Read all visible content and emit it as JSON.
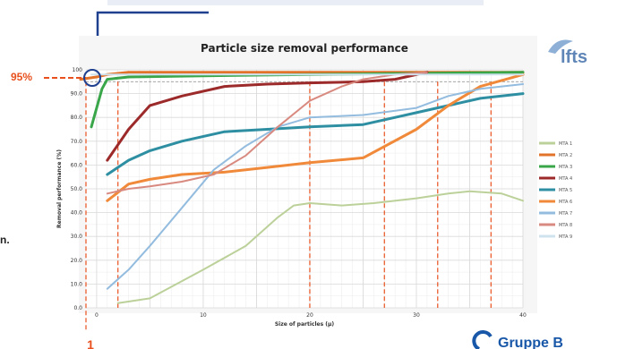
{
  "page": {
    "top_banner_text": "",
    "fragment_text": "n.",
    "threshold_label": "95%",
    "marker_label": "1",
    "logo_right": "lfts",
    "logo_bottom": "Gruppe B"
  },
  "colors": {
    "accent_red": "#e8501e",
    "dark_red": "#b52a22",
    "navy_top": "#1f3f8f",
    "logo_blue": "#5f86b7",
    "gruppe_blue": "#1957a8"
  },
  "chart_data": {
    "type": "line",
    "title": "Particle size removal performance",
    "xlabel": "Size of particles (µ)",
    "ylabel": "Removal performance (%)",
    "xlim": [
      -1,
      40
    ],
    "ylim": [
      0,
      100
    ],
    "x_ticks": [
      0,
      5,
      10,
      15,
      20,
      25,
      30,
      35,
      40
    ],
    "x_tick_labels": [
      "0",
      "",
      "10",
      "",
      "20",
      "",
      "30",
      "",
      "40"
    ],
    "y_ticks": [
      0,
      10,
      20,
      30,
      40,
      50,
      60,
      70,
      80,
      90,
      100
    ],
    "y_tick_labels": [
      "0.0",
      "10.0",
      "20.0",
      "30.0",
      "40.0",
      "50.0",
      "60.0",
      "70.0",
      "80.0",
      "90.0",
      "100"
    ],
    "threshold": 95,
    "marked_x": [
      -1,
      2,
      20,
      27,
      32,
      37
    ],
    "grid": true,
    "legend_position": "right",
    "series": [
      {
        "name": "MTA 1",
        "color": "#bcd19a",
        "x": [
          2,
          5,
          10,
          14,
          17,
          18.5,
          20,
          23,
          26,
          30,
          33,
          35,
          38,
          40
        ],
        "y": [
          2,
          4,
          16,
          26,
          38,
          43,
          44,
          43,
          44,
          46,
          48,
          49,
          48,
          45
        ]
      },
      {
        "name": "MTA 2",
        "color": "#e2732a",
        "x": [
          -1.5,
          0,
          1,
          3,
          10,
          20,
          30,
          40
        ],
        "y": [
          96,
          97,
          98,
          99,
          99,
          99,
          99,
          99
        ]
      },
      {
        "name": "MTA 3",
        "color": "#3aa64a",
        "x": [
          -0.5,
          0.5,
          1,
          3,
          10,
          20,
          30,
          40
        ],
        "y": [
          76,
          92,
          96,
          97,
          97.5,
          98,
          98.5,
          99
        ]
      },
      {
        "name": "MTA 4",
        "color": "#9c2a2a",
        "x": [
          1,
          3,
          5,
          8,
          12,
          16,
          20,
          25,
          28,
          31
        ],
        "y": [
          62,
          75,
          85,
          89,
          93,
          94,
          94.5,
          95,
          96,
          99
        ]
      },
      {
        "name": "MTA 5",
        "color": "#2f8fa2",
        "x": [
          1,
          3,
          5,
          8,
          12,
          16,
          20,
          25,
          30,
          33,
          36,
          40
        ],
        "y": [
          56,
          62,
          66,
          70,
          74,
          75,
          76,
          77,
          82,
          85,
          88,
          90
        ]
      },
      {
        "name": "MTA 6",
        "color": "#f08a3a",
        "x": [
          1,
          3,
          5,
          8,
          12,
          16,
          20,
          25,
          30,
          33,
          36,
          40
        ],
        "y": [
          45,
          52,
          54,
          56,
          57,
          59,
          61,
          63,
          75,
          85,
          93,
          98
        ]
      },
      {
        "name": "MTA 7",
        "color": "#93bcdf",
        "x": [
          1,
          3,
          5,
          8,
          11,
          14,
          17,
          20,
          25,
          30,
          33,
          36,
          40
        ],
        "y": [
          8,
          16,
          26,
          42,
          58,
          68,
          76,
          80,
          81,
          84,
          89,
          92,
          94
        ]
      },
      {
        "name": "MTA 8",
        "color": "#d98a80",
        "x": [
          1,
          3,
          5,
          8,
          11,
          14,
          17,
          20,
          23,
          25,
          28,
          31
        ],
        "y": [
          48,
          50,
          51,
          53,
          56,
          64,
          76,
          87,
          93,
          96,
          98,
          99
        ]
      },
      {
        "name": "MTA 9",
        "color": "#cfe3ef",
        "x": [
          -0.5,
          40
        ],
        "y": [
          98,
          98
        ]
      }
    ]
  }
}
